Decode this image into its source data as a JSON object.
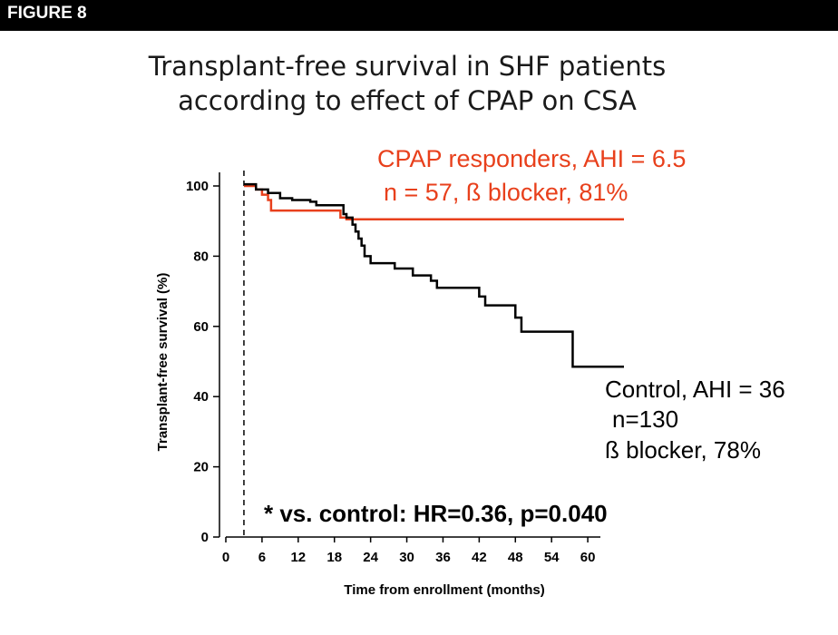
{
  "header": {
    "label": "FIGURE 8"
  },
  "title": {
    "line1": "Transplant-free survival in SHF patients",
    "line2": "according to effect of CPAP on CSA"
  },
  "chart_data": {
    "type": "line",
    "step": true,
    "xlabel": "Time from enrollment  (months)",
    "ylabel": "Transplant-free survival (%)",
    "xlim": [
      0,
      66
    ],
    "ylim": [
      0,
      100
    ],
    "x_ticks": [
      0,
      6,
      12,
      18,
      24,
      30,
      36,
      42,
      48,
      54,
      60
    ],
    "y_ticks": [
      0,
      20,
      40,
      60,
      80,
      100
    ],
    "vertical_reference_x": 3,
    "colors": {
      "cpap": "#e8401c",
      "control": "#000000"
    },
    "series": [
      {
        "name": "CPAP responders",
        "color_key": "cpap",
        "points": [
          [
            3,
            100
          ],
          [
            5,
            99
          ],
          [
            6,
            97.5
          ],
          [
            7,
            96
          ],
          [
            7.5,
            93
          ],
          [
            12,
            93
          ],
          [
            18,
            93
          ],
          [
            19,
            91
          ],
          [
            20,
            90.5
          ],
          [
            66,
            90.5
          ]
        ]
      },
      {
        "name": "Control",
        "color_key": "control",
        "points": [
          [
            3,
            100.5
          ],
          [
            5,
            99
          ],
          [
            7,
            98
          ],
          [
            9,
            96.5
          ],
          [
            11,
            96
          ],
          [
            14,
            95.5
          ],
          [
            15,
            94.5
          ],
          [
            19,
            94.5
          ],
          [
            19.5,
            92
          ],
          [
            20,
            91
          ],
          [
            21,
            89
          ],
          [
            21.5,
            87
          ],
          [
            22,
            85
          ],
          [
            22.5,
            83
          ],
          [
            23,
            80
          ],
          [
            24,
            78
          ],
          [
            27,
            78
          ],
          [
            28,
            76.5
          ],
          [
            30,
            76.5
          ],
          [
            31,
            74.5
          ],
          [
            33,
            74.5
          ],
          [
            34,
            73
          ],
          [
            35,
            71
          ],
          [
            41,
            71
          ],
          [
            42,
            68.5
          ],
          [
            43,
            66
          ],
          [
            47,
            66
          ],
          [
            48,
            62.5
          ],
          [
            49,
            58.5
          ],
          [
            57,
            58.5
          ],
          [
            57.5,
            48.5
          ],
          [
            66,
            48.5
          ]
        ]
      }
    ],
    "annotations": {
      "cpap_line1": "CPAP responders,  AHI = 6.5",
      "cpap_line2": "n = 57, ß blocker, 81%",
      "control_line1": "Control, AHI = 36",
      "control_line2": "n=130",
      "control_line3": "ß blocker, 78%",
      "stat": "* vs. control: HR=0.36,  p=0.040"
    }
  }
}
